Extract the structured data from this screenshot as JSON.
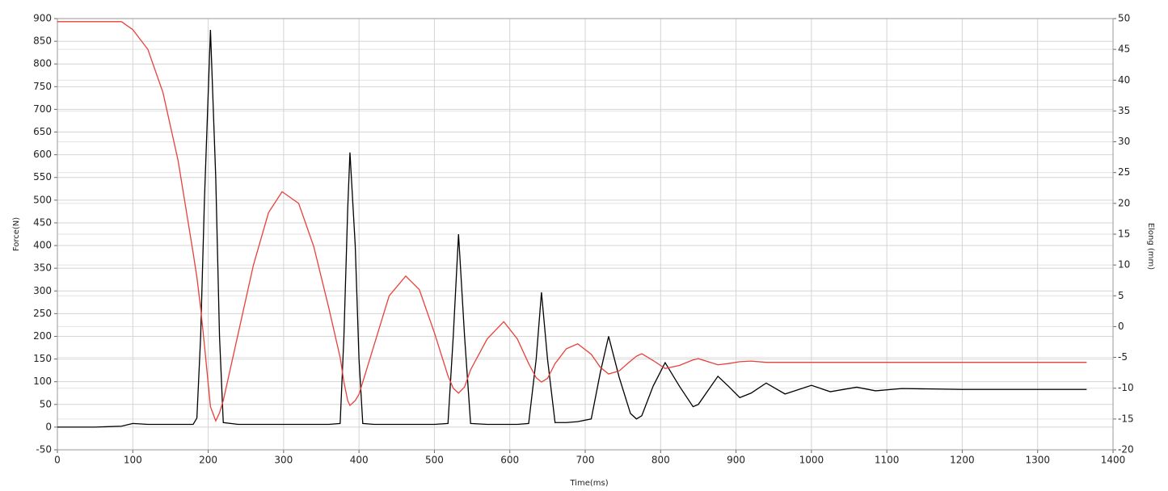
{
  "chart_data": {
    "type": "line",
    "xlabel": "Time(ms)",
    "ylabel": "Force(N)",
    "y2label": "Elong (mm)",
    "x": [
      0,
      50,
      85,
      100,
      120,
      140,
      160,
      180,
      185,
      190,
      195,
      203,
      210,
      215,
      220,
      240,
      260,
      280,
      298,
      320,
      340,
      360,
      375,
      380,
      385,
      388,
      395,
      400,
      405,
      420,
      440,
      462,
      480,
      500,
      518,
      525,
      532,
      540,
      548,
      570,
      592,
      610,
      625,
      635,
      642,
      650,
      660,
      675,
      690,
      708,
      720,
      731,
      745,
      760,
      768,
      775,
      790,
      806,
      825,
      843,
      850,
      876,
      890,
      905,
      920,
      940,
      965,
      1000,
      1025,
      1060,
      1085,
      1120,
      1200,
      1365
    ],
    "series": [
      {
        "color": "#000000",
        "values": [
          0,
          0,
          2,
          8,
          6,
          6,
          6,
          6,
          20,
          200,
          500,
          875,
          550,
          200,
          10,
          6,
          6,
          6,
          6,
          6,
          6,
          6,
          8,
          200,
          480,
          605,
          400,
          150,
          8,
          6,
          6,
          6,
          6,
          6,
          8,
          200,
          425,
          200,
          8,
          6,
          6,
          6,
          8,
          150,
          297,
          150,
          10,
          10,
          12,
          18,
          120,
          200,
          110,
          30,
          18,
          25,
          90,
          142,
          90,
          45,
          50,
          112,
          90,
          65,
          75,
          97,
          73,
          92,
          78,
          88,
          80,
          85,
          83,
          83
        ]
      },
      {
        "color": "#e8403a",
        "axis": "y2",
        "values": [
          49.5,
          49.5,
          49.5,
          48.2,
          45,
          38,
          27,
          12,
          8,
          3,
          -3,
          -13,
          -15.3,
          -14,
          -12,
          -1,
          10,
          18.5,
          21.9,
          20,
          13,
          3,
          -5,
          -9,
          -12,
          -12.8,
          -12,
          -11,
          -9,
          -3,
          5,
          8.2,
          6,
          -1,
          -8,
          -10,
          -10.8,
          -9.8,
          -7,
          -2,
          0.8,
          -2,
          -6,
          -8.3,
          -9,
          -8.4,
          -6,
          -3.6,
          -2.8,
          -4.5,
          -6.6,
          -7.7,
          -7.2,
          -5.6,
          -4.8,
          -4.4,
          -5.5,
          -6.8,
          -6.3,
          -5.4,
          -5.2,
          -6.2,
          -6,
          -5.7,
          -5.6,
          -5.8,
          -5.8,
          -5.8,
          -5.8,
          -5.8,
          -5.8,
          -5.8,
          -5.8,
          -5.8
        ]
      }
    ],
    "xlim": [
      0,
      1400
    ],
    "xticks": [
      0,
      100,
      200,
      300,
      400,
      500,
      600,
      700,
      800,
      900,
      1000,
      1100,
      1200,
      1300,
      1400
    ],
    "ylim": [
      -50,
      900
    ],
    "yticks": [
      -50,
      0,
      50,
      100,
      150,
      200,
      250,
      300,
      350,
      400,
      450,
      500,
      550,
      600,
      650,
      700,
      750,
      800,
      850,
      900
    ],
    "y2lim": [
      -20,
      50
    ],
    "y2ticks": [
      -20,
      -15,
      -10,
      -5,
      0,
      5,
      10,
      15,
      20,
      25,
      30,
      35,
      40,
      45,
      50
    ],
    "grid": true
  }
}
